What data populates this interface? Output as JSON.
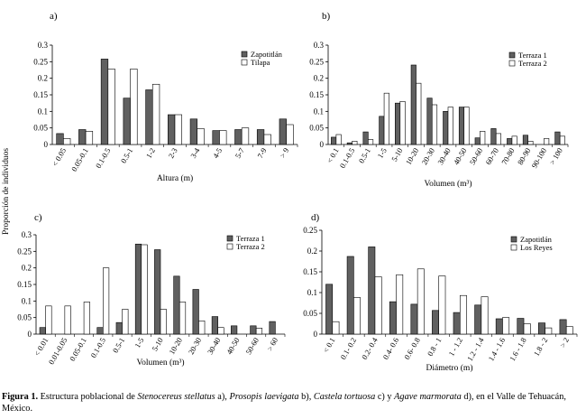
{
  "y_axis_label": "Proporción de individuos",
  "colors": {
    "series1": "#606060",
    "series2": "#ffffff",
    "stroke": "#000000"
  },
  "chart_data": [
    {
      "panel": "a)",
      "type": "bar",
      "xlabel": "Altura (m)",
      "ylim": [
        0,
        0.3
      ],
      "yticks": [
        "0",
        "0.05",
        "0.1",
        "0.15",
        "0.2",
        "0.25",
        "0.3"
      ],
      "legend_position": "top-right",
      "categories": [
        "< 0.05",
        "0.05-0.1",
        "0.1-0.5",
        "0.5-1",
        "1-2",
        "2-3",
        "3-4",
        "4-5",
        "5-7",
        "7-9",
        "> 9"
      ],
      "series": [
        {
          "name": "Zapotitlán",
          "values": [
            0.033,
            0.045,
            0.258,
            0.14,
            0.165,
            0.09,
            0.077,
            0.042,
            0.045,
            0.045,
            0.077
          ]
        },
        {
          "name": "Tilapa",
          "values": [
            0.018,
            0.04,
            0.228,
            0.228,
            0.182,
            0.09,
            0.048,
            0.042,
            0.05,
            0.03,
            0.06
          ]
        }
      ]
    },
    {
      "panel": "b)",
      "type": "bar",
      "xlabel": "Volumen (m³)",
      "ylim": [
        0,
        0.3
      ],
      "yticks": [
        "0",
        "0.05",
        "0.1",
        "0.15",
        "0.2",
        "0.25",
        "0.3"
      ],
      "legend_position": "top-right",
      "categories": [
        "< 0.1",
        "0.1-0.5",
        "0.5-1",
        "1-5",
        "5-10",
        "10-20",
        "20-30",
        "30-40",
        "40-50",
        "50-60",
        "60-70",
        "70-80",
        "80-90",
        "90-100",
        "> 100"
      ],
      "series": [
        {
          "name": "Terraza 1",
          "values": [
            0.022,
            0.005,
            0.038,
            0.085,
            0.125,
            0.24,
            0.14,
            0.1,
            0.113,
            0.02,
            0.048,
            0.018,
            0.028,
            0.0,
            0.038
          ]
        },
        {
          "name": "Terraza 2",
          "values": [
            0.03,
            0.01,
            0.015,
            0.155,
            0.13,
            0.185,
            0.12,
            0.113,
            0.113,
            0.04,
            0.033,
            0.025,
            0.01,
            0.018,
            0.025
          ]
        }
      ]
    },
    {
      "panel": "c)",
      "type": "bar",
      "xlabel": "Volumen (m³)",
      "ylim": [
        0,
        0.3
      ],
      "yticks": [
        "0",
        "0.05",
        "0.1",
        "0.15",
        "0.2",
        "0.25",
        "0.3"
      ],
      "legend_position": "top-right",
      "categories": [
        "< 0.01",
        "0.01-0.05",
        "0.05-0.1",
        "0.1-0.5",
        "0.5-1",
        "1-5",
        "5-10",
        "10-20",
        "20-30",
        "30-40",
        "40-50",
        "50-60",
        "> 60"
      ],
      "series": [
        {
          "name": "Terraza 1",
          "values": [
            0.02,
            0.0,
            0.0,
            0.02,
            0.035,
            0.272,
            0.255,
            0.175,
            0.135,
            0.053,
            0.025,
            0.025,
            0.038
          ]
        },
        {
          "name": "Terraza 2",
          "values": [
            0.085,
            0.085,
            0.097,
            0.2,
            0.075,
            0.27,
            0.075,
            0.097,
            0.04,
            0.02,
            0.0,
            0.018,
            0.0
          ]
        }
      ]
    },
    {
      "panel": "d)",
      "type": "bar",
      "xlabel": "Diámetro (m)",
      "ylim": [
        0,
        0.25
      ],
      "yticks": [
        "0",
        "0.05",
        "0.1",
        "0.15",
        "0.2",
        "0.25"
      ],
      "legend_position": "top-right",
      "categories": [
        "< 0.1",
        "0.1- 0.2",
        "0.2- 0.4",
        "0.4- 0.6",
        "0.6- 0.8",
        "0.8 - 1",
        "1 - 1.2",
        "1.2 - 1.4",
        "1.4 - 1.6",
        "1.6 - 1.8",
        "1.8 - 2",
        "> 2"
      ],
      "series": [
        {
          "name": "Zapotitlán",
          "values": [
            0.12,
            0.187,
            0.21,
            0.078,
            0.072,
            0.057,
            0.052,
            0.07,
            0.037,
            0.038,
            0.027,
            0.035
          ]
        },
        {
          "name": "Los Reyes",
          "values": [
            0.03,
            0.088,
            0.138,
            0.143,
            0.157,
            0.14,
            0.093,
            0.09,
            0.04,
            0.025,
            0.015,
            0.018
          ]
        }
      ]
    }
  ],
  "caption": {
    "label": "Figura 1.",
    "t1": " Estructura poblacional de ",
    "sp1": "Stenocereus stellatus",
    "t2": " a), ",
    "sp2": "Prosopis laevigata",
    "t3": " b), ",
    "sp3": "Castela tortuosa",
    "t4": " c) y ",
    "sp4": "Agave marmorata",
    "t5": " d), en el Valle de Tehuacán, México."
  }
}
